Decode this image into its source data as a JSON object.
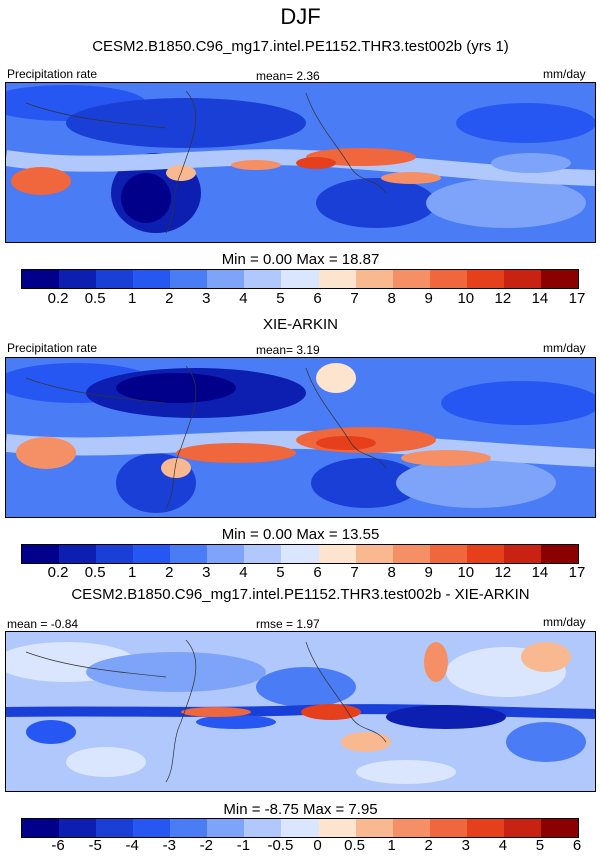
{
  "title": "DJF",
  "panels": [
    {
      "subtitle": "CESM2.B1850.C96_mg17.intel.PE1152.THR3.test002b (yrs 1)",
      "left_label": "Precipitation rate",
      "center_label": "mean=   2.36",
      "right_label": "mm/day",
      "minmax": "Min =   0.00 Max =  18.87",
      "ticks": [
        "0.2",
        "0.5",
        "1",
        "2",
        "3",
        "4",
        "5",
        "6",
        "7",
        "8",
        "9",
        "10",
        "12",
        "14",
        "17"
      ],
      "colors": [
        "#00008b",
        "#0c1fb0",
        "#1a3fd6",
        "#2757f2",
        "#4a7cf5",
        "#7da4f8",
        "#b0c8fb",
        "#dae6fd",
        "#fde4cf",
        "#f8b890",
        "#f59066",
        "#f0663d",
        "#e63f1c",
        "#c72212",
        "#8b0000"
      ]
    },
    {
      "subtitle": "XIE-ARKIN",
      "left_label": "Precipitation rate",
      "center_label": "mean=   3.19",
      "right_label": "mm/day",
      "minmax": "Min =   0.00 Max =  13.55",
      "ticks": [
        "0.2",
        "0.5",
        "1",
        "2",
        "3",
        "4",
        "5",
        "6",
        "7",
        "8",
        "9",
        "10",
        "12",
        "14",
        "17"
      ],
      "colors": [
        "#00008b",
        "#0c1fb0",
        "#1a3fd6",
        "#2757f2",
        "#4a7cf5",
        "#7da4f8",
        "#b0c8fb",
        "#dae6fd",
        "#fde4cf",
        "#f8b890",
        "#f59066",
        "#f0663d",
        "#e63f1c",
        "#c72212",
        "#8b0000"
      ]
    },
    {
      "subtitle": "CESM2.B1850.C96_mg17.intel.PE1152.THR3.test002b - XIE-ARKIN",
      "left_label": "mean =  -0.84",
      "center_label": "rmse =   1.97",
      "right_label": "mm/day",
      "minmax": "Min =  -8.75 Max =   7.95",
      "ticks": [
        "-6",
        "-5",
        "-4",
        "-3",
        "-2",
        "-1",
        "-0.5",
        "0",
        "0.5",
        "1",
        "2",
        "3",
        "4",
        "5",
        "6"
      ],
      "colors": [
        "#00008b",
        "#0c1fb0",
        "#1a3fd6",
        "#2757f2",
        "#4a7cf5",
        "#7da4f8",
        "#b0c8fb",
        "#dae6fd",
        "#fde4cf",
        "#f8b890",
        "#f59066",
        "#f0663d",
        "#e63f1c",
        "#c72212",
        "#8b0000"
      ]
    }
  ]
}
